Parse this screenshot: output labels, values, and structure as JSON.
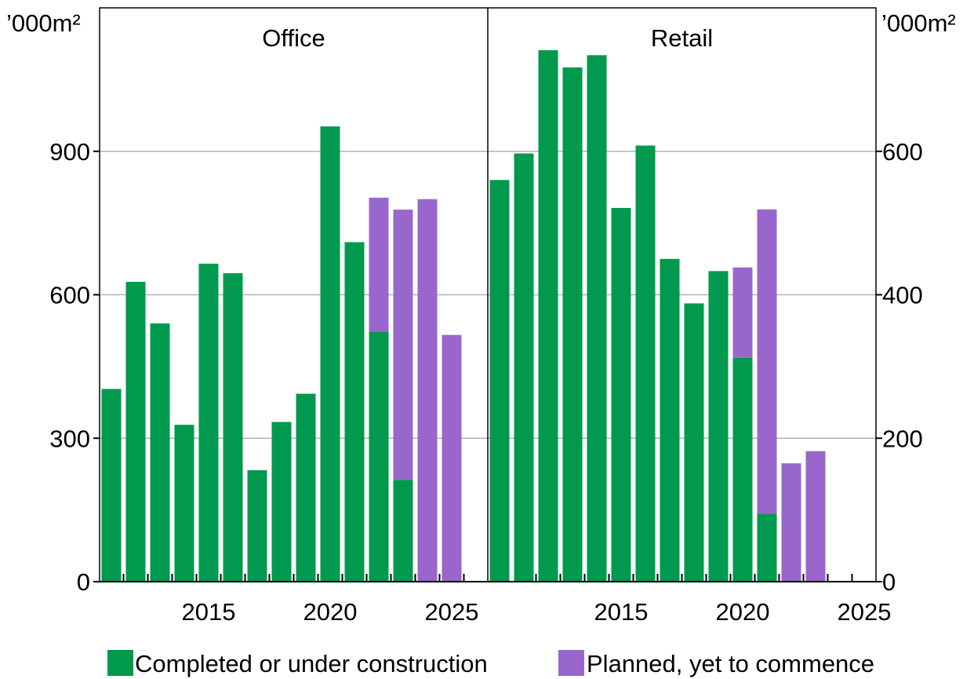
{
  "colors": {
    "completed": "#00994D",
    "planned": "#9966CC",
    "grid": "#B0B0B0",
    "axis": "#000000"
  },
  "chart_data": {
    "type": "bar",
    "stacked": true,
    "x_ticks": [
      "2015",
      "2020",
      "2025"
    ],
    "legend": {
      "position": "bottom",
      "items": [
        {
          "label": "Completed or under construction",
          "color_key": "completed"
        },
        {
          "label": "Planned, yet to commence",
          "color_key": "planned"
        }
      ]
    },
    "panels": [
      {
        "title": "Office",
        "unit_label": "’000m²",
        "axis_side": "left",
        "ylim": [
          0,
          1200
        ],
        "y_ticks": [
          0,
          300,
          600,
          900
        ],
        "grid": true,
        "categories": [
          2011,
          2012,
          2013,
          2014,
          2015,
          2016,
          2017,
          2018,
          2019,
          2020,
          2021,
          2022,
          2023,
          2024,
          2025
        ],
        "series": [
          {
            "name": "Completed or under construction",
            "values": [
              403,
              627,
              540,
              328,
              665,
              645,
              233,
              334,
              393,
              952,
              710,
              522,
              213,
              0,
              0
            ]
          },
          {
            "name": "Planned, yet to commence",
            "values": [
              0,
              0,
              0,
              0,
              0,
              0,
              0,
              0,
              0,
              0,
              0,
              281,
              565,
              800,
              516
            ]
          }
        ]
      },
      {
        "title": "Retail",
        "unit_label": "’000m²",
        "axis_side": "right",
        "ylim": [
          0,
          800
        ],
        "y_ticks": [
          0,
          200,
          400,
          600
        ],
        "grid": true,
        "categories": [
          2010,
          2011,
          2012,
          2013,
          2014,
          2015,
          2016,
          2017,
          2018,
          2019,
          2020,
          2021,
          2022,
          2023,
          2024,
          2025
        ],
        "series": [
          {
            "name": "Completed or under construction",
            "values": [
              560,
              597,
              741,
              717,
              734,
              521,
              608,
              450,
              388,
              433,
              312,
              95,
              0,
              0,
              0,
              0
            ]
          },
          {
            "name": "Planned, yet to commence",
            "values": [
              0,
              0,
              0,
              0,
              0,
              0,
              0,
              0,
              0,
              0,
              126,
              424,
              165,
              182,
              0,
              0
            ]
          }
        ]
      }
    ]
  }
}
